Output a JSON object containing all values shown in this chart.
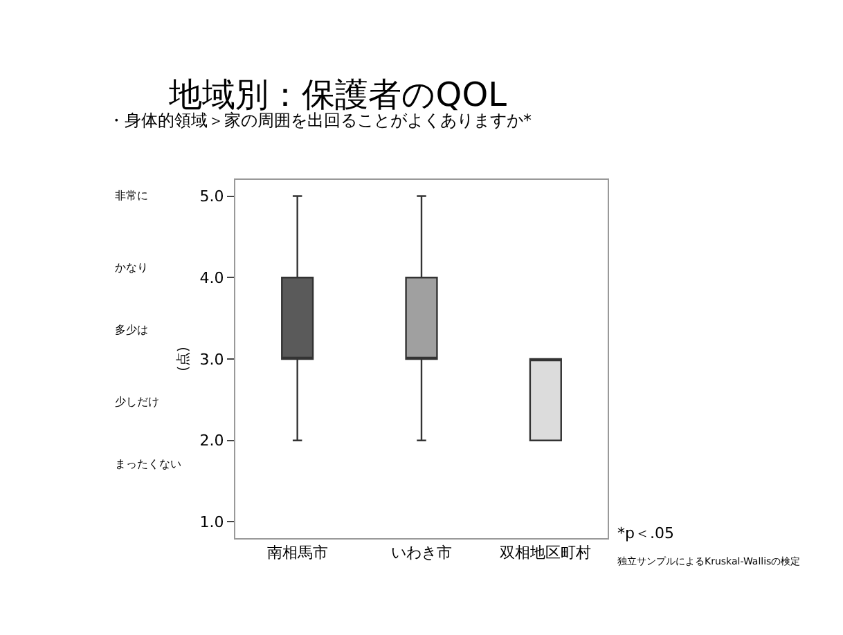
{
  "chart_data": {
    "type": "box",
    "title": "地域別：保護者のQOL",
    "subtitle": "・身体的領域＞家の周囲を出回ることがよくありますか*",
    "ylabel": "(点)",
    "categories": [
      "南相馬市",
      "いわき市",
      "双相地区町村"
    ],
    "colors": [
      "#5a5a5a",
      "#a0a0a0",
      "#dcdcdc"
    ],
    "boxes": [
      {
        "low": 2,
        "q1": 3,
        "median": 3,
        "q3": 4,
        "high": 5
      },
      {
        "low": 2,
        "q1": 3,
        "median": 3,
        "q3": 4,
        "high": 5
      },
      {
        "low": 2,
        "q1": 2,
        "median": 3,
        "q3": 3,
        "high": 3
      }
    ],
    "ylim": [
      0.8,
      5.2
    ],
    "yticks": [
      {
        "value": 1,
        "label": "1.0"
      },
      {
        "value": 2,
        "label": "2.0"
      },
      {
        "value": 3,
        "label": "3.0"
      },
      {
        "value": 4,
        "label": "4.0"
      },
      {
        "value": 5,
        "label": "5.0"
      }
    ],
    "grid": false,
    "annotations": [
      "非常に",
      "かなり",
      "多少は",
      "少しだけ",
      "まったくない",
      "*p＜.05",
      "独立サンプルによるKruskal-Wallisの検定"
    ]
  }
}
